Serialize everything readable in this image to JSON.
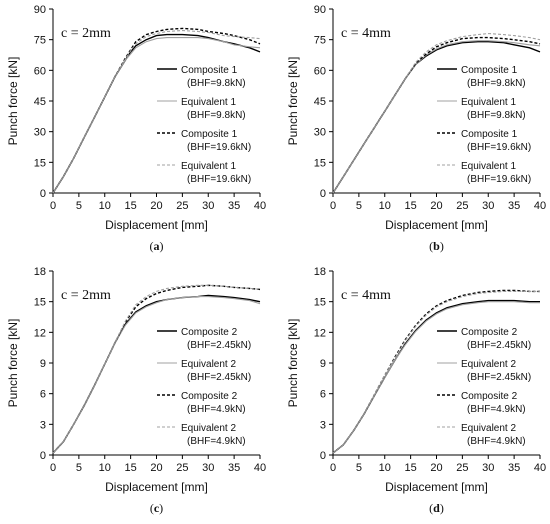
{
  "chart_data": [
    {
      "type": "line",
      "caption": "a",
      "annotation": "c = 2mm",
      "xlabel": "Displacement [mm]",
      "ylabel": "Punch force [kN]",
      "xlim": [
        0,
        40
      ],
      "ylim": [
        0,
        90
      ],
      "xticks": [
        0,
        5,
        10,
        15,
        20,
        25,
        30,
        35,
        40
      ],
      "yticks": [
        0,
        15,
        30,
        45,
        60,
        75,
        90
      ],
      "grid": false,
      "legend_position": "right",
      "series": [
        {
          "name": "Composite 1",
          "condition": "(BHF=9.8kN)",
          "style": "solid",
          "color": "#000000",
          "x": [
            0,
            2,
            4,
            6,
            8,
            10,
            12,
            14,
            15,
            16,
            18,
            20,
            22,
            25,
            28,
            30,
            33,
            35,
            38,
            40
          ],
          "y": [
            0,
            8,
            17,
            27,
            37,
            47,
            57,
            65,
            69,
            72,
            75,
            77,
            77.5,
            77.5,
            77,
            76,
            74,
            73,
            71,
            69
          ]
        },
        {
          "name": "Equivalent 1",
          "condition": "(BHF=9.8kN)",
          "style": "solid",
          "color": "#a0a0a0",
          "x": [
            0,
            2,
            4,
            6,
            8,
            10,
            12,
            14,
            15,
            16,
            18,
            20,
            22,
            25,
            28,
            30,
            33,
            35,
            38,
            40
          ],
          "y": [
            0,
            8,
            17,
            27,
            37,
            47,
            57,
            65,
            68,
            71,
            74,
            75.5,
            76,
            76,
            76,
            75.5,
            74,
            72.5,
            71.5,
            71
          ]
        },
        {
          "name": "Composite 1",
          "condition": "(BHF=19.6kN)",
          "style": "dashed",
          "color": "#000000",
          "x": [
            0,
            2,
            4,
            6,
            8,
            10,
            12,
            14,
            15,
            16,
            18,
            20,
            22,
            25,
            28,
            30,
            33,
            35,
            38,
            40
          ],
          "y": [
            0,
            8,
            17,
            27,
            37,
            47,
            57,
            66,
            70,
            74,
            77.5,
            79,
            80,
            80.5,
            80,
            79,
            78,
            77,
            75,
            73
          ]
        },
        {
          "name": "Equivalent 1",
          "condition": "(BHF=19.6kN)",
          "style": "dashed",
          "color": "#a0a0a0",
          "x": [
            0,
            2,
            4,
            6,
            8,
            10,
            12,
            14,
            15,
            16,
            18,
            20,
            22,
            25,
            28,
            30,
            33,
            35,
            38,
            40
          ],
          "y": [
            0,
            8,
            17,
            27,
            37,
            47,
            57,
            65.5,
            69.5,
            73,
            76.5,
            78,
            79,
            79.5,
            79,
            78.5,
            77,
            76.5,
            76,
            75.5
          ]
        }
      ]
    },
    {
      "type": "line",
      "caption": "b",
      "annotation": "c = 4mm",
      "xlabel": "Displacement [mm]",
      "ylabel": "Punch force [kN]",
      "xlim": [
        0,
        40
      ],
      "ylim": [
        0,
        90
      ],
      "xticks": [
        0,
        5,
        10,
        15,
        20,
        25,
        30,
        35,
        40
      ],
      "yticks": [
        0,
        15,
        30,
        45,
        60,
        75,
        90
      ],
      "grid": false,
      "legend_position": "right",
      "series": [
        {
          "name": "Composite 1",
          "condition": "(BHF=9.8kN)",
          "style": "solid",
          "color": "#000000",
          "x": [
            0,
            2,
            4,
            6,
            8,
            10,
            12,
            14,
            16,
            18,
            20,
            22,
            25,
            28,
            30,
            33,
            35,
            38,
            40
          ],
          "y": [
            0,
            8,
            16,
            24,
            32,
            40,
            48,
            56,
            63,
            67,
            70,
            72,
            73.5,
            74,
            74,
            73.5,
            72.5,
            71,
            69
          ]
        },
        {
          "name": "Equivalent 1",
          "condition": "(BHF=9.8kN)",
          "style": "solid",
          "color": "#a0a0a0",
          "x": [
            0,
            2,
            4,
            6,
            8,
            10,
            12,
            14,
            16,
            18,
            20,
            22,
            25,
            28,
            30,
            33,
            35,
            38,
            40
          ],
          "y": [
            0,
            8,
            16,
            24,
            32,
            40,
            48,
            56,
            63,
            67.5,
            70.5,
            72.5,
            74,
            74.5,
            74.5,
            74,
            73.5,
            72.5,
            72
          ]
        },
        {
          "name": "Composite 1",
          "condition": "(BHF=19.6kN)",
          "style": "dashed",
          "color": "#000000",
          "x": [
            0,
            2,
            4,
            6,
            8,
            10,
            12,
            14,
            16,
            18,
            20,
            22,
            25,
            28,
            30,
            33,
            35,
            38,
            40
          ],
          "y": [
            0,
            8,
            16,
            24,
            32,
            40,
            48,
            56,
            63.5,
            68,
            71.5,
            73.5,
            75.5,
            76,
            76,
            75.5,
            75,
            74,
            73
          ]
        },
        {
          "name": "Equivalent 1",
          "condition": "(BHF=19.6kN)",
          "style": "dashed",
          "color": "#a0a0a0",
          "x": [
            0,
            2,
            4,
            6,
            8,
            10,
            12,
            14,
            16,
            18,
            20,
            22,
            25,
            28,
            30,
            33,
            35,
            38,
            40
          ],
          "y": [
            0,
            8,
            16,
            24,
            32,
            40,
            48,
            56,
            64,
            69,
            72.5,
            74.5,
            76.5,
            77.5,
            78,
            77.5,
            77,
            76,
            75
          ]
        }
      ]
    },
    {
      "type": "line",
      "caption": "c",
      "annotation": "c = 2mm",
      "xlabel": "Displacement [mm]",
      "ylabel": "Punch force [kN]",
      "xlim": [
        0,
        40
      ],
      "ylim": [
        0,
        18
      ],
      "xticks": [
        0,
        5,
        10,
        15,
        20,
        25,
        30,
        35,
        40
      ],
      "yticks": [
        0,
        3,
        6,
        9,
        12,
        15,
        18
      ],
      "grid": false,
      "legend_position": "right",
      "series": [
        {
          "name": "Composite 2",
          "condition": "(BHF=2.45kN)",
          "style": "solid",
          "color": "#000000",
          "x": [
            0,
            2,
            4,
            6,
            8,
            10,
            12,
            14,
            16,
            18,
            20,
            22,
            25,
            28,
            30,
            33,
            35,
            38,
            40
          ],
          "y": [
            0.2,
            1.3,
            3,
            4.8,
            6.8,
            8.9,
            11,
            12.8,
            14,
            14.6,
            15,
            15.2,
            15.4,
            15.5,
            15.6,
            15.5,
            15.4,
            15.2,
            15
          ]
        },
        {
          "name": "Equivalent 2",
          "condition": "(BHF=2.45kN)",
          "style": "solid",
          "color": "#a0a0a0",
          "x": [
            0,
            2,
            4,
            6,
            8,
            10,
            12,
            14,
            16,
            18,
            20,
            22,
            25,
            28,
            30,
            33,
            35,
            38,
            40
          ],
          "y": [
            0.2,
            1.3,
            3,
            4.8,
            6.8,
            8.9,
            11,
            12.7,
            13.9,
            14.5,
            14.9,
            15.2,
            15.4,
            15.5,
            15.5,
            15.4,
            15.3,
            15.1,
            14.8
          ]
        },
        {
          "name": "Composite 2",
          "condition": "(BHF=4.9kN)",
          "style": "dashed",
          "color": "#000000",
          "x": [
            0,
            2,
            4,
            6,
            8,
            10,
            12,
            14,
            16,
            18,
            20,
            22,
            25,
            28,
            30,
            33,
            35,
            38,
            40
          ],
          "y": [
            0.2,
            1.3,
            3,
            4.8,
            6.8,
            8.9,
            11,
            13,
            14.5,
            15.3,
            15.8,
            16.1,
            16.4,
            16.5,
            16.6,
            16.5,
            16.4,
            16.3,
            16.2
          ]
        },
        {
          "name": "Equivalent 2",
          "condition": "(BHF=4.9kN)",
          "style": "dashed",
          "color": "#a0a0a0",
          "x": [
            0,
            2,
            4,
            6,
            8,
            10,
            12,
            14,
            16,
            18,
            20,
            22,
            25,
            28,
            30,
            33,
            35,
            38,
            40
          ],
          "y": [
            0.2,
            1.3,
            3,
            4.8,
            6.8,
            8.9,
            11,
            13.1,
            14.7,
            15.5,
            16,
            16.3,
            16.5,
            16.6,
            16.6,
            16.5,
            16.4,
            16.3,
            16.2
          ]
        }
      ]
    },
    {
      "type": "line",
      "caption": "d",
      "annotation": "c = 4mm",
      "xlabel": "Displacement [mm]",
      "ylabel": "Punch force [kN]",
      "xlim": [
        0,
        40
      ],
      "ylim": [
        0,
        18
      ],
      "xticks": [
        0,
        5,
        10,
        15,
        20,
        25,
        30,
        35,
        40
      ],
      "yticks": [
        0,
        3,
        6,
        9,
        12,
        15,
        18
      ],
      "grid": false,
      "legend_position": "right",
      "series": [
        {
          "name": "Composite 2",
          "condition": "(BHF=2.45kN)",
          "style": "solid",
          "color": "#000000",
          "x": [
            0,
            2,
            4,
            6,
            8,
            10,
            12,
            14,
            16,
            18,
            20,
            22,
            25,
            28,
            30,
            33,
            35,
            38,
            40
          ],
          "y": [
            0.2,
            1,
            2.4,
            4,
            5.8,
            7.6,
            9.3,
            10.9,
            12.2,
            13.2,
            13.9,
            14.4,
            14.8,
            15,
            15.1,
            15.1,
            15.1,
            15,
            15
          ]
        },
        {
          "name": "Equivalent 2",
          "condition": "(BHF=2.45kN)",
          "style": "solid",
          "color": "#a0a0a0",
          "x": [
            0,
            2,
            4,
            6,
            8,
            10,
            12,
            14,
            16,
            18,
            20,
            22,
            25,
            28,
            30,
            33,
            35,
            38,
            40
          ],
          "y": [
            0.2,
            1,
            2.4,
            4,
            5.8,
            7.6,
            9.3,
            10.8,
            12.1,
            13.1,
            13.8,
            14.3,
            14.7,
            14.9,
            15,
            15,
            15,
            14.9,
            14.9
          ]
        },
        {
          "name": "Composite 2",
          "condition": "(BHF=4.9kN)",
          "style": "dashed",
          "color": "#000000",
          "x": [
            0,
            2,
            4,
            6,
            8,
            10,
            12,
            14,
            16,
            18,
            20,
            22,
            25,
            28,
            30,
            33,
            35,
            38,
            40
          ],
          "y": [
            0.2,
            1,
            2.4,
            4,
            5.9,
            7.8,
            9.6,
            11.3,
            12.7,
            13.8,
            14.6,
            15.1,
            15.6,
            15.9,
            16,
            16.1,
            16.1,
            16,
            16
          ]
        },
        {
          "name": "Equivalent 2",
          "condition": "(BHF=4.9kN)",
          "style": "dashed",
          "color": "#a0a0a0",
          "x": [
            0,
            2,
            4,
            6,
            8,
            10,
            12,
            14,
            16,
            18,
            20,
            22,
            25,
            28,
            30,
            33,
            35,
            38,
            40
          ],
          "y": [
            0.2,
            1,
            2.4,
            4,
            5.9,
            7.8,
            9.5,
            11.2,
            12.6,
            13.7,
            14.5,
            15,
            15.5,
            15.8,
            15.9,
            16,
            16,
            16,
            16
          ]
        }
      ]
    }
  ]
}
